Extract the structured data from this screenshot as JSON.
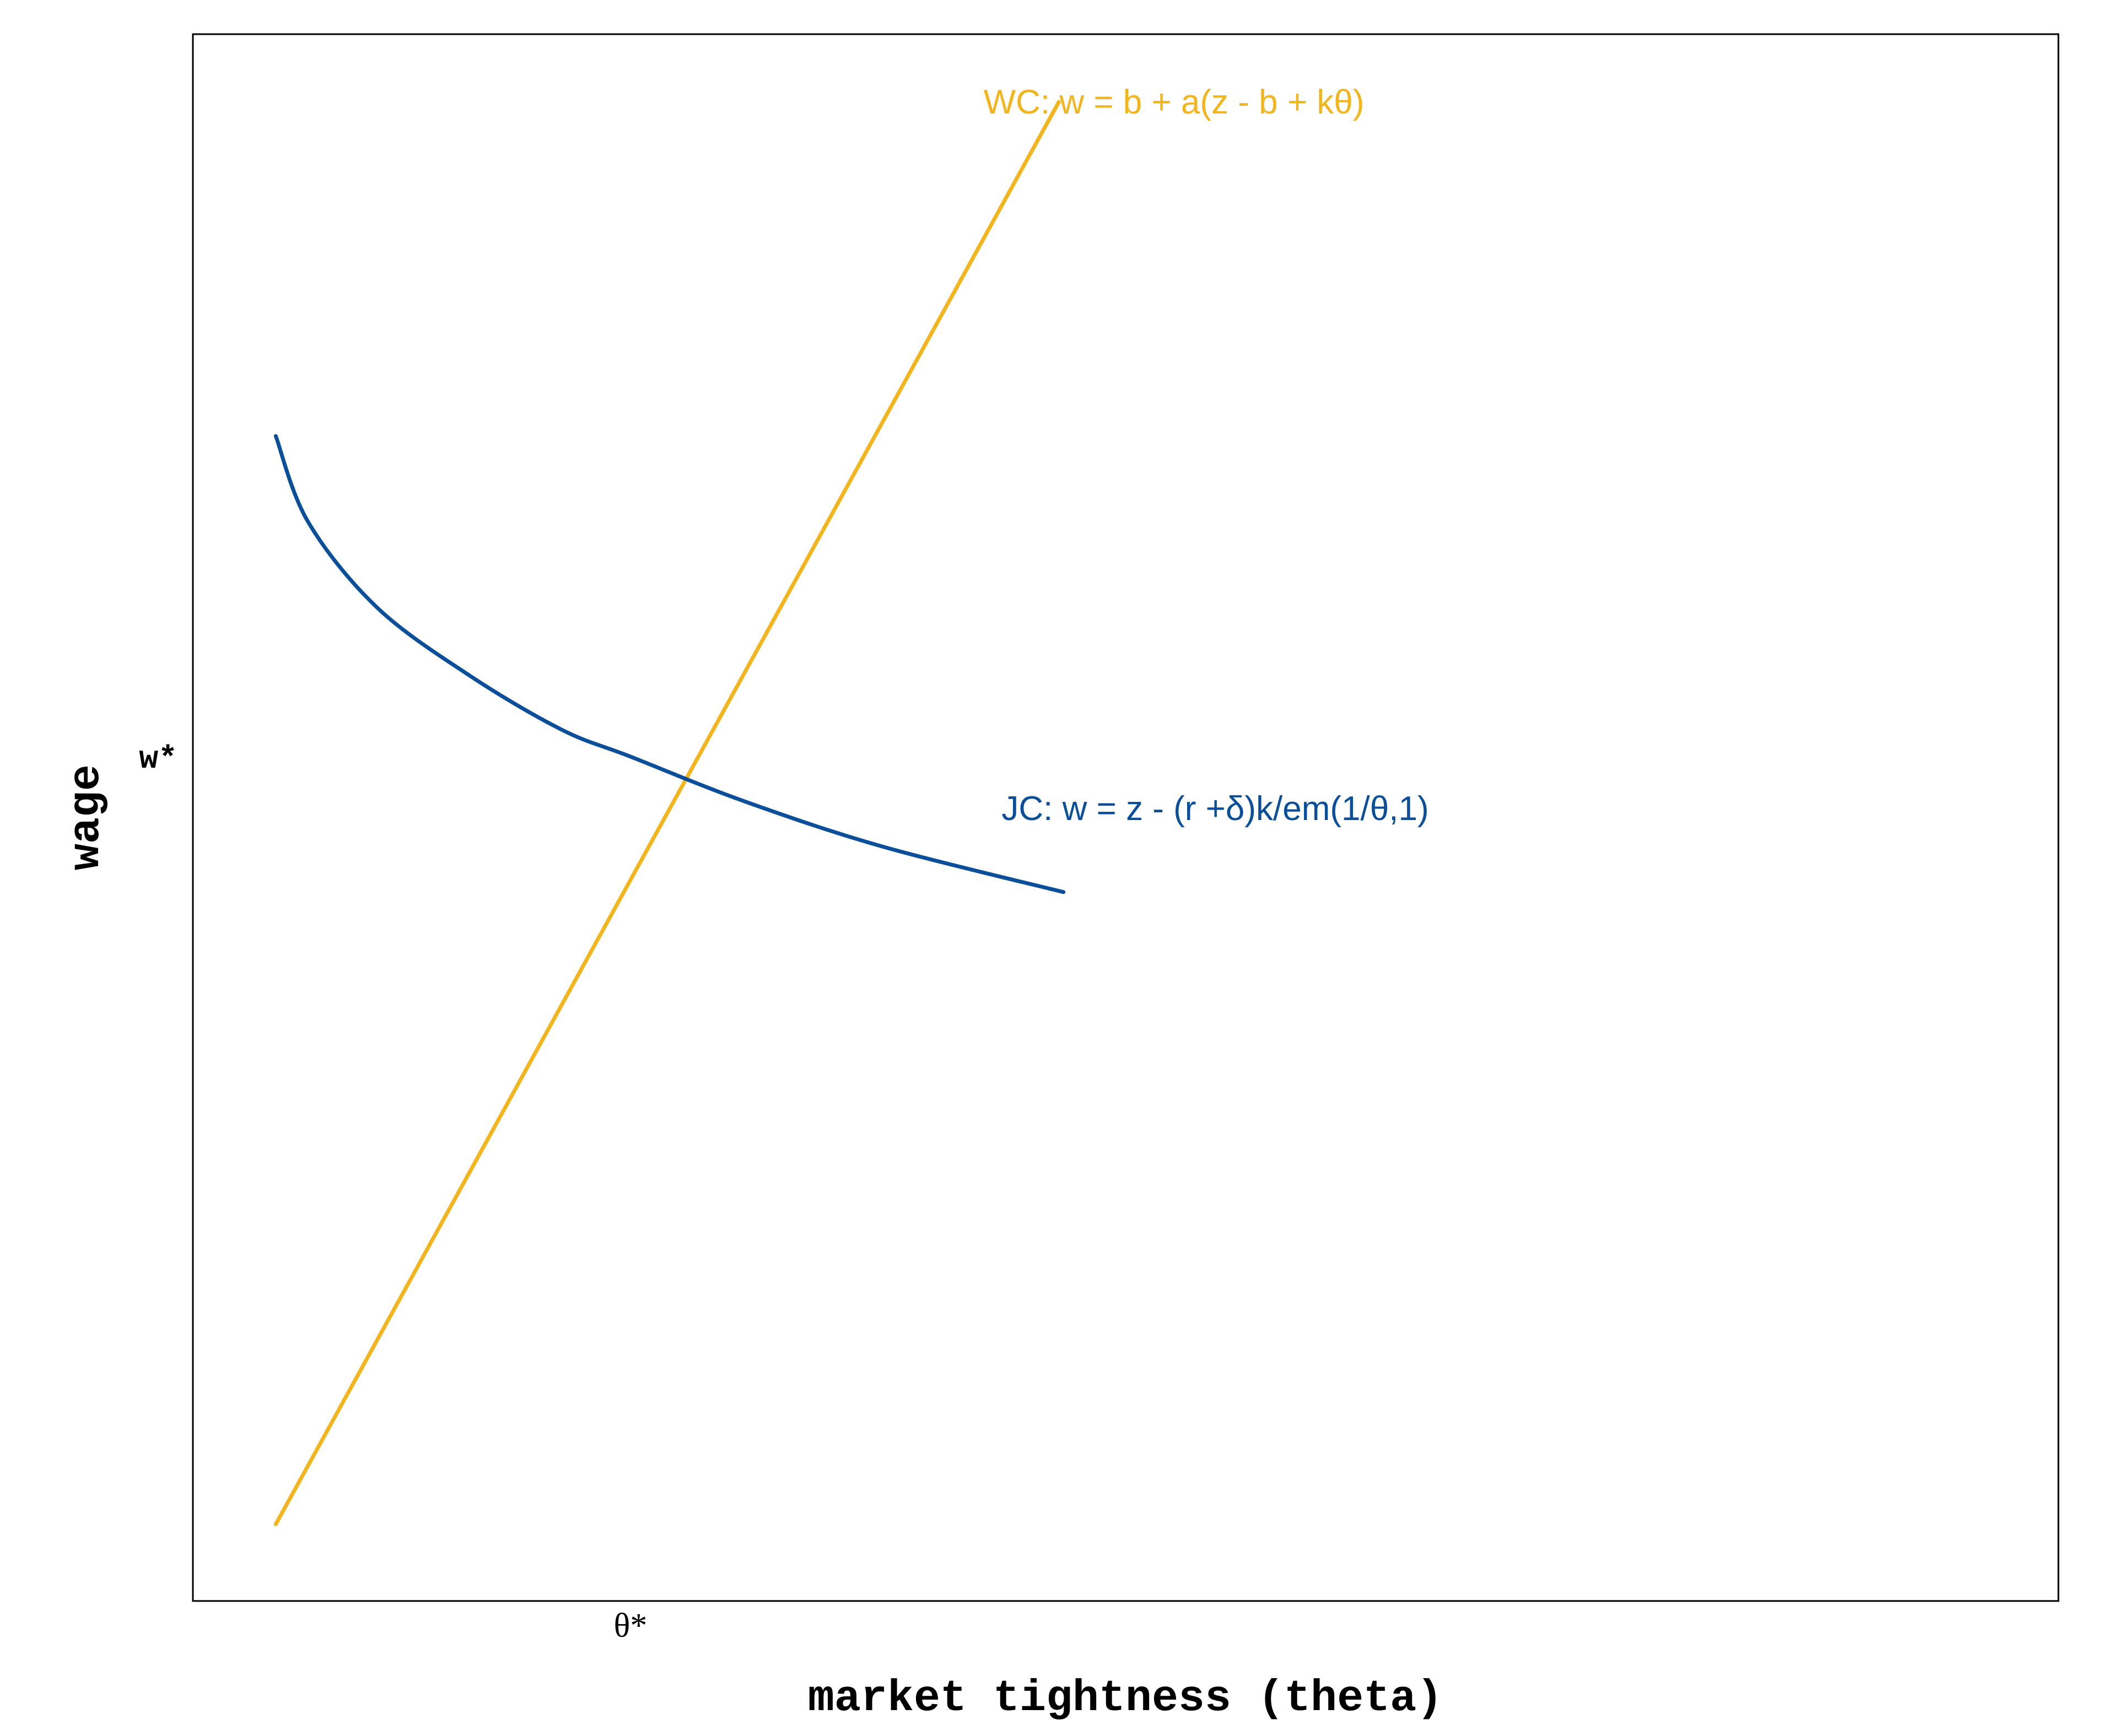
{
  "chart_data": {
    "type": "line",
    "title": "",
    "xlabel": "market tightness (theta)",
    "ylabel": "wage",
    "x_ticks": [
      {
        "x": 0.95,
        "label": "θ*"
      }
    ],
    "y_ticks": [
      {
        "y": 0.0,
        "label": "w*"
      }
    ],
    "xlim": [
      0,
      4.05
    ],
    "ylim": [
      -1.87,
      1.6
    ],
    "grid": false,
    "legend": "none",
    "series": [
      {
        "name": "WC: w = b + a(z - b + kθ)",
        "color": "#F2B51D",
        "x": [
          0.18,
          1.88
        ],
        "y": [
          -1.7,
          1.45
        ]
      },
      {
        "name": "JC: w = z - (r +δ)k/em(1/θ,1)",
        "color": "#0B4F9A",
        "x": [
          0.18,
          0.25,
          0.4,
          0.6,
          0.8,
          0.95,
          1.2,
          1.5,
          1.89
        ],
        "y": [
          0.71,
          0.52,
          0.33,
          0.18,
          0.06,
          0.0,
          -0.1,
          -0.2,
          -0.3
        ]
      }
    ]
  }
}
